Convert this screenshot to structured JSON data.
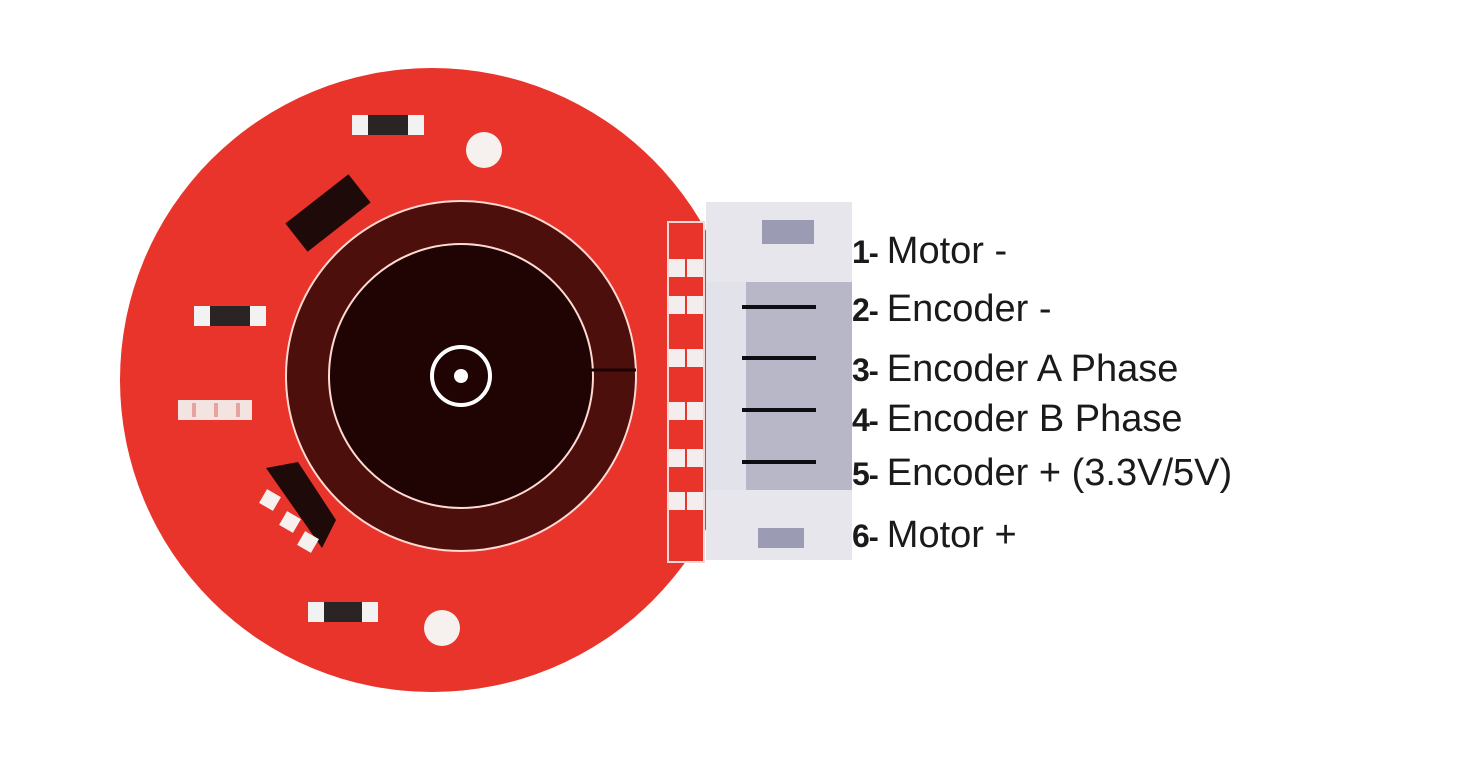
{
  "colors": {
    "board": "#e8342a",
    "rotor_outer": "#4d0f0c",
    "rotor_inner": "#200403",
    "connector_light": "#e6e6ec",
    "connector_mid": "#b7b7c8",
    "pin_marker": "#9b9bb3",
    "component_dark": "#2a2424",
    "label_text": "#1a1a1a"
  },
  "pins": [
    {
      "number": "1",
      "dash": "-",
      "label": "Motor -"
    },
    {
      "number": "2",
      "dash": "-",
      "label": "Encoder -"
    },
    {
      "number": "3",
      "dash": "-",
      "label": "Encoder A Phase"
    },
    {
      "number": "4",
      "dash": "-",
      "label": "Encoder B Phase"
    },
    {
      "number": "5",
      "dash": "-",
      "label": "Encoder + (3.3V/5V)"
    },
    {
      "number": "6",
      "dash": "-",
      "label": "Motor +"
    }
  ]
}
